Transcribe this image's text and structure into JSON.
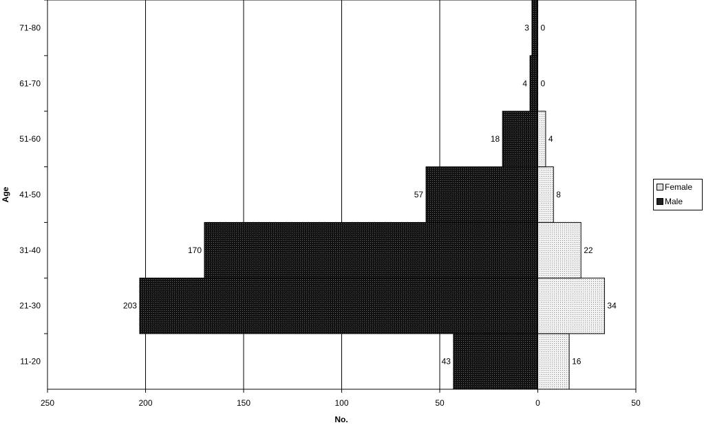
{
  "chart_data": {
    "type": "bar",
    "orientation": "horizontal-population-pyramid",
    "categories": [
      "11-20",
      "21-30",
      "31-40",
      "41-50",
      "51-60",
      "61-70",
      "71-80"
    ],
    "series": [
      {
        "name": "Male",
        "values": [
          43,
          203,
          170,
          57,
          18,
          4,
          3
        ],
        "side": "left",
        "color": "#1a1a1a"
      },
      {
        "name": "Female",
        "values": [
          16,
          34,
          22,
          8,
          4,
          0,
          0
        ],
        "side": "right",
        "color": "#d9d9d9"
      }
    ],
    "xlabel": "No.",
    "ylabel": "Age",
    "xticks": [
      "250",
      "200",
      "150",
      "100",
      "50",
      "0",
      "50"
    ],
    "xlim": [
      -250,
      50
    ],
    "grid": "vertical",
    "legend_position": "right"
  },
  "legend": {
    "female": "Female",
    "male": "Male"
  }
}
